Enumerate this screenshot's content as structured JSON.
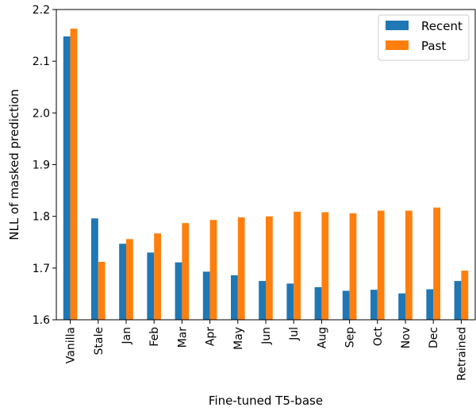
{
  "chart_data": {
    "type": "bar",
    "title": "",
    "xlabel": "Fine-tuned T5-base",
    "ylabel": "NLL of masked prediction",
    "ylim": [
      1.6,
      2.2
    ],
    "yticks": [
      "1.6",
      "1.7",
      "1.8",
      "1.9",
      "2.0",
      "2.1",
      "2.2"
    ],
    "categories": [
      "Vanilla",
      "Stale",
      "Jan",
      "Feb",
      "Mar",
      "Apr",
      "May",
      "Jun",
      "Jul",
      "Aug",
      "Sep",
      "Oct",
      "Nov",
      "Dec",
      "Retrained"
    ],
    "series": [
      {
        "name": "Recent",
        "color": "#1f77b4",
        "values": [
          2.148,
          1.796,
          1.747,
          1.73,
          1.711,
          1.693,
          1.686,
          1.675,
          1.67,
          1.663,
          1.656,
          1.658,
          1.651,
          1.659,
          1.675
        ]
      },
      {
        "name": "Past",
        "color": "#ff7f0e",
        "values": [
          2.163,
          1.712,
          1.756,
          1.767,
          1.787,
          1.793,
          1.798,
          1.8,
          1.809,
          1.808,
          1.806,
          1.811,
          1.811,
          1.817,
          1.695
        ]
      }
    ],
    "legend_position": "top-right",
    "grid": false
  }
}
